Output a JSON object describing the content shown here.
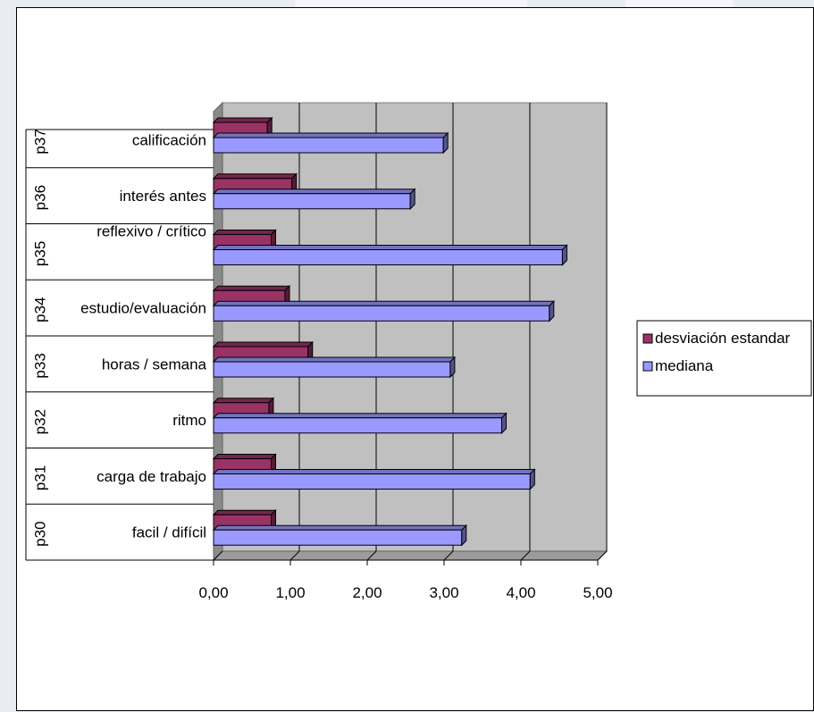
{
  "chart_data": {
    "type": "bar",
    "orientation": "horizontal",
    "three_d": true,
    "codes": [
      "p30",
      "p31",
      "p32",
      "p33",
      "p34",
      "p35",
      "p36",
      "p37"
    ],
    "categories": [
      "facil / difícil",
      "carga de trabajo",
      "ritmo",
      "horas / semana",
      "estudio/evaluación",
      "reflexivo / crítico",
      "interés antes",
      "calificación"
    ],
    "series": [
      {
        "name": "desviación estandar",
        "color": "#993366",
        "values": [
          0.75,
          0.75,
          0.72,
          1.23,
          0.93,
          0.75,
          1.02,
          0.7
        ]
      },
      {
        "name": "mediana",
        "color": "#9999ff",
        "values": [
          3.23,
          4.12,
          3.75,
          3.08,
          4.37,
          4.54,
          2.56,
          2.99
        ]
      }
    ],
    "x_ticks": [
      "0,00",
      "1,00",
      "2,00",
      "3,00",
      "4,00",
      "5,00"
    ],
    "xlim": [
      0,
      5
    ],
    "grid": true,
    "legend": "right",
    "plot_color": "#c0c0c0"
  }
}
